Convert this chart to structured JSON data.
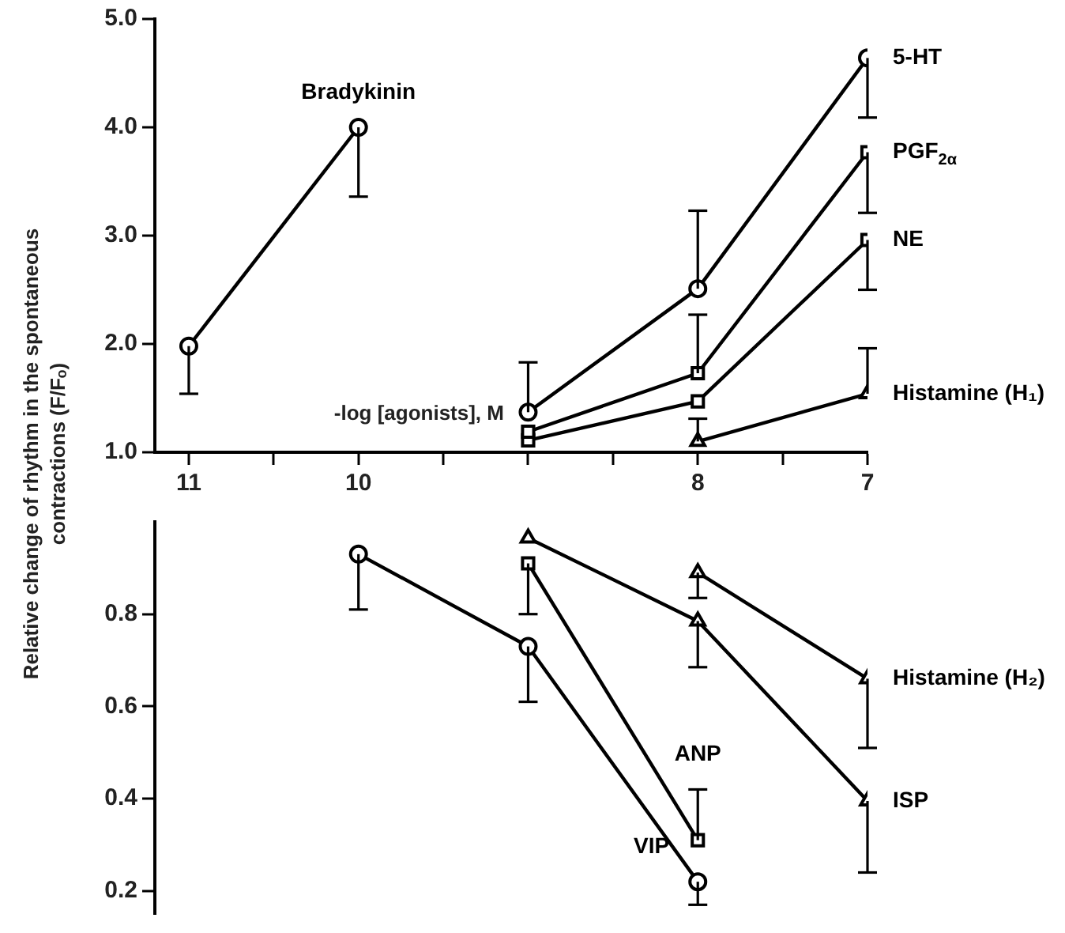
{
  "chart_data": [
    {
      "type": "line",
      "xlabel": "-log [agonists], M",
      "ylabel": "Relative change of rhythm in the spontaneous contractions (F/Fₒ)",
      "xlim": [
        11.2,
        7
      ],
      "xticks": [
        11,
        {
          "value": 10.5,
          "label": null
        },
        10,
        {
          "value": 9.5,
          "label": null
        },
        {
          "value": 9,
          "label": null
        },
        {
          "value": 8.5,
          "label": null
        },
        8,
        {
          "value": 7.5,
          "label": null
        },
        7
      ],
      "ylim": [
        1,
        5
      ],
      "yticks": [
        {
          "value": 1,
          "label": "1.0"
        },
        {
          "value": 2,
          "label": "2.0"
        },
        {
          "value": 3,
          "label": "3.0"
        },
        {
          "value": 4,
          "label": "4.0"
        },
        {
          "value": 5,
          "label": "5.0"
        }
      ],
      "grid": false,
      "legend": false,
      "series": [
        {
          "name": "Bradykinin",
          "color": "#000000",
          "marker": "circle",
          "x": [
            11,
            10
          ],
          "values": [
            1.98,
            4.0
          ],
          "errors": [
            [
              1.54,
              1.98
            ],
            [
              3.36,
              4.0
            ]
          ]
        },
        {
          "name": "5-HT",
          "color": "#000000",
          "marker": "circle",
          "x": [
            9,
            8,
            7
          ],
          "values": [
            1.37,
            2.51,
            4.64
          ],
          "errors": [
            [
              1.37,
              1.83
            ],
            [
              2.51,
              3.23
            ],
            [
              4.09,
              4.64
            ]
          ]
        },
        {
          "name": "PGF$_{2α}$",
          "color": "#000000",
          "marker": "square",
          "x": [
            9,
            8,
            7
          ],
          "values": [
            1.19,
            1.73,
            3.77
          ],
          "errors": [
            null,
            [
              1.73,
              2.27
            ],
            [
              3.21,
              3.77
            ]
          ]
        },
        {
          "name": "NE",
          "color": "#000000",
          "marker": "square",
          "x": [
            9,
            8,
            7
          ],
          "values": [
            1.11,
            1.47,
            2.96
          ],
          "errors": [
            null,
            null,
            [
              2.5,
              2.96
            ]
          ]
        },
        {
          "name": "Histamine (H₁)",
          "color": "#000000",
          "marker": "triangle",
          "x": [
            8,
            7
          ],
          "values": [
            1.1,
            1.54
          ],
          "errors": [
            [
              1.1,
              1.31
            ],
            [
              1.54,
              1.96
            ]
          ]
        }
      ]
    },
    {
      "type": "line",
      "xlim": [
        11.2,
        7
      ],
      "ylim": [
        0.15,
        1
      ],
      "yticks": [
        {
          "value": 0.2,
          "label": "0.2"
        },
        {
          "value": 0.4,
          "label": "0.4"
        },
        {
          "value": 0.6,
          "label": "0.6"
        },
        {
          "value": 0.8,
          "label": "0.8"
        }
      ],
      "tick_labels": "y",
      "grid": false,
      "legend": false,
      "series": [
        {
          "name": "VIP",
          "color": "#000000",
          "marker": "circle",
          "x": [
            10,
            9,
            8
          ],
          "values": [
            0.93,
            0.73,
            0.22
          ],
          "errors": [
            [
              0.81,
              0.93
            ],
            [
              0.61,
              0.73
            ],
            [
              0.17,
              0.22
            ]
          ]
        },
        {
          "name": "ANP",
          "color": "#000000",
          "marker": "square",
          "x": [
            9,
            8
          ],
          "values": [
            0.91,
            0.31
          ],
          "errors": [
            [
              0.8,
              0.91
            ],
            [
              0.31,
              0.42
            ]
          ]
        },
        {
          "name": "ISP",
          "color": "#000000",
          "marker": "triangle",
          "x": [
            9,
            8,
            7
          ],
          "values": [
            0.965,
            0.785,
            0.395
          ],
          "errors": [
            null,
            [
              0.685,
              0.785
            ],
            [
              0.24,
              0.395
            ]
          ]
        },
        {
          "name": "Histamine (H₂)",
          "color": "#000000",
          "marker": "triangle",
          "x": [
            8,
            7
          ],
          "values": [
            0.89,
            0.66
          ],
          "errors": [
            [
              0.835,
              0.89
            ],
            [
              0.51,
              0.66
            ]
          ]
        }
      ]
    }
  ]
}
